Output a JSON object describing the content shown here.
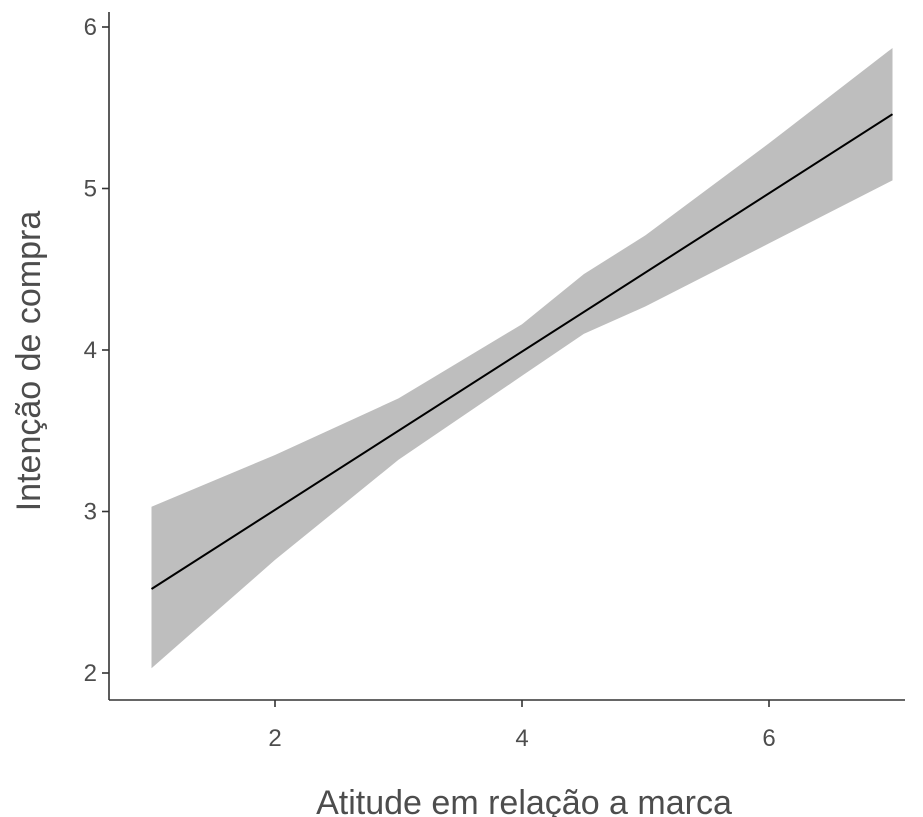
{
  "chart_data": {
    "type": "line",
    "title": "",
    "xlabel": "Atitude em relação a marca",
    "ylabel": "Intenção de compra",
    "xlim": [
      0.3,
      7.0
    ],
    "ylim": [
      1.85,
      6.1
    ],
    "xticks": [
      2,
      4,
      6
    ],
    "yticks": [
      2,
      3,
      4,
      5,
      6
    ],
    "grid": false,
    "legend": "none",
    "series": [
      {
        "x": [
          1.0,
          7.0
        ],
        "y": [
          2.52,
          5.46
        ],
        "band": {
          "x": [
            1.0,
            2.0,
            3.0,
            4.0,
            4.5,
            5.0,
            6.0,
            7.0
          ],
          "lower": [
            2.03,
            2.7,
            3.32,
            3.84,
            4.1,
            4.27,
            4.66,
            5.05
          ],
          "upper": [
            3.03,
            3.35,
            3.7,
            4.16,
            4.47,
            4.71,
            5.28,
            5.87
          ]
        }
      }
    ],
    "colors": {
      "line": "#000000",
      "band": "#bebebe",
      "axis": "#333333"
    }
  }
}
